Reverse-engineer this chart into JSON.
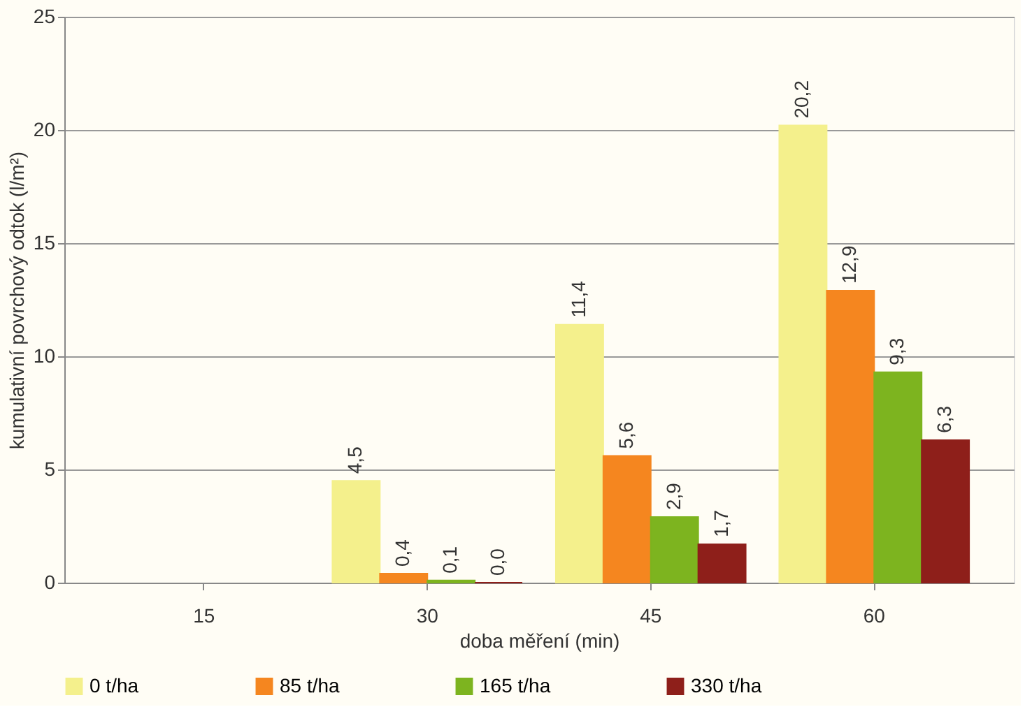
{
  "chart_data": {
    "type": "bar",
    "xlabel": "doba měření (min)",
    "ylabel": "kumulativní povrchový odtok (l/m²)",
    "categories": [
      "15",
      "30",
      "45",
      "60"
    ],
    "series": [
      {
        "name": "0 t/ha",
        "color": "#f4f08c",
        "values": [
          null,
          4.5,
          11.4,
          20.2
        ],
        "value_labels": [
          null,
          "4,5",
          "11,4",
          "20,2"
        ]
      },
      {
        "name": "85 t/ha",
        "color": "#f5861f",
        "values": [
          null,
          0.4,
          5.6,
          12.9
        ],
        "value_labels": [
          null,
          "0,4",
          "5,6",
          "12,9"
        ]
      },
      {
        "name": "165 t/ha",
        "color": "#7db41f",
        "values": [
          null,
          0.1,
          2.9,
          9.3
        ],
        "value_labels": [
          null,
          "0,1",
          "2,9",
          "9,3"
        ]
      },
      {
        "name": "330 t/ha",
        "color": "#8e1f1a",
        "values": [
          null,
          0.0,
          1.7,
          6.3
        ],
        "value_labels": [
          null,
          "0,0",
          "1,7",
          "6,3"
        ]
      }
    ],
    "ylim": [
      0,
      25
    ],
    "yticks": [
      0,
      5,
      10,
      15,
      20,
      25
    ],
    "grid": "y",
    "legend": "bottom"
  }
}
